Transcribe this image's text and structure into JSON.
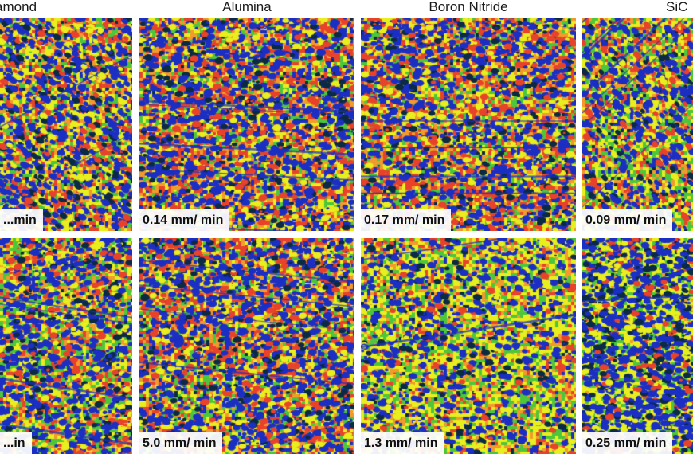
{
  "columns": [
    {
      "title": "Diamond",
      "top_rate": "...min",
      "bottom_rate": "...in",
      "seed": 11
    },
    {
      "title": "Alumina",
      "top_rate": "0.14 mm/ min",
      "bottom_rate": "5.0 mm/ min",
      "seed": 23
    },
    {
      "title": "Boron Nitride",
      "top_rate": "0.17 mm/ min",
      "bottom_rate": "1.3 mm/ min",
      "seed": 37
    },
    {
      "title": "SiC",
      "top_rate": "0.09 mm/ min",
      "bottom_rate": "0.25 mm/ min",
      "seed": 53
    }
  ],
  "colors": {
    "red": "#e8422a",
    "orange": "#f39a2c",
    "yellow": "#e9ee1e",
    "green": "#4cc63a",
    "blue": "#1b2fc4",
    "dark": "#0b2a44"
  }
}
